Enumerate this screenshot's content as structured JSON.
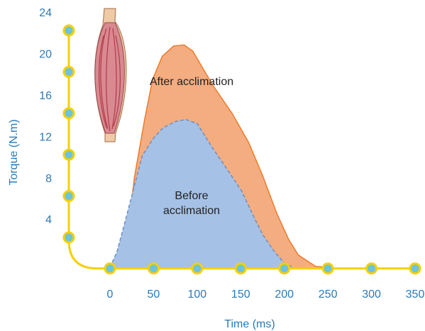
{
  "chart_data": {
    "type": "area",
    "x_label": "Time (ms)",
    "y_label": "Torque (N.m)",
    "xlim": [
      -45,
      355
    ],
    "ylim": [
      1,
      25
    ],
    "xticks": [
      0,
      50,
      100,
      150,
      200,
      250,
      300,
      350
    ],
    "yticks": [
      4,
      8,
      12,
      16,
      20,
      24
    ],
    "axis_color": "#f5d000",
    "tick_color": "#6cc3dc",
    "label_color": "#2a7ab8",
    "series": [
      {
        "name": "After acclimation",
        "color": "#f4ad80",
        "line_color": "#ef7a2a",
        "dashed": false,
        "x": [
          0,
          10,
          20,
          28,
          40,
          49,
          60,
          73,
          85,
          95,
          118,
          140,
          159,
          175,
          191,
          205,
          216,
          236,
          250
        ],
        "values": [
          1.1,
          1.6,
          4,
          9.8,
          15.5,
          19.3,
          21.5,
          22.5,
          22.6,
          22,
          18.7,
          16,
          13.2,
          10,
          6.4,
          3.8,
          2.3,
          1.2,
          1.1
        ]
      },
      {
        "name": "Before acclimation",
        "color": "#a5c1e6",
        "line_color": "#6a8fc4",
        "dashed": true,
        "x": [
          0,
          8,
          20,
          37,
          50,
          61,
          75,
          87,
          100,
          118,
          135,
          151,
          165,
          175,
          188,
          199,
          210
        ],
        "values": [
          1.1,
          2.6,
          6.4,
          11.9,
          13.6,
          14.6,
          15.2,
          15.4,
          15,
          12.6,
          10.5,
          8.5,
          6,
          4.3,
          2.7,
          1.6,
          1.1
        ]
      }
    ]
  }
}
